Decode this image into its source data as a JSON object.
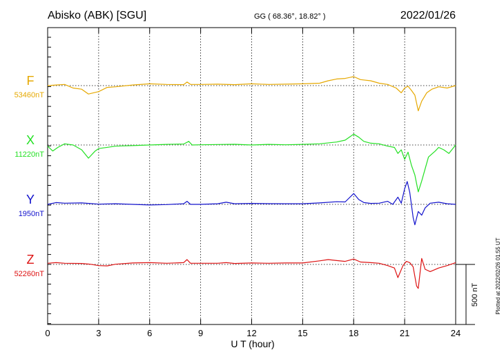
{
  "header": {
    "station": "Abisko (ABK)  [SGU]",
    "coords": "GG ( 68.36°,  18.82° )",
    "date": "2022/01/26"
  },
  "plotted_note": "Plotted at 2022/02/26 01:55 UT",
  "scale_bar_label": "500 nT",
  "colors": {
    "F": "#e6a800",
    "X": "#22e022",
    "Y": "#1010cc",
    "Z": "#dd1111"
  },
  "chart_data": {
    "type": "line",
    "title": "Abisko (ABK)  [SGU]",
    "xlabel": "U T (hour)",
    "ylabel": "",
    "xlim": [
      0,
      24
    ],
    "x_ticks": [
      "0",
      "3",
      "6",
      "9",
      "12",
      "15",
      "18",
      "21",
      "24"
    ],
    "grid": true,
    "scale_bar_nT": 500,
    "series": [
      {
        "key": "F",
        "name": "F",
        "baseline_label": "53460nT",
        "baseline": 53460,
        "color": "#e6a800",
        "points": [
          [
            0,
            53460
          ],
          [
            0.5,
            53465
          ],
          [
            1,
            53470
          ],
          [
            1.5,
            53440
          ],
          [
            2,
            53430
          ],
          [
            2.4,
            53390
          ],
          [
            3,
            53410
          ],
          [
            3.5,
            53445
          ],
          [
            4,
            53450
          ],
          [
            5,
            53465
          ],
          [
            6,
            53475
          ],
          [
            7,
            53470
          ],
          [
            8,
            53468
          ],
          [
            8.2,
            53490
          ],
          [
            8.4,
            53470
          ],
          [
            9,
            53470
          ],
          [
            10,
            53472
          ],
          [
            11,
            53468
          ],
          [
            12,
            53475
          ],
          [
            13,
            53470
          ],
          [
            14,
            53472
          ],
          [
            15,
            53475
          ],
          [
            16,
            53480
          ],
          [
            16.5,
            53500
          ],
          [
            17,
            53515
          ],
          [
            17.5,
            53520
          ],
          [
            18,
            53535
          ],
          [
            18.4,
            53510
          ],
          [
            19,
            53500
          ],
          [
            19.5,
            53480
          ],
          [
            20,
            53470
          ],
          [
            20.5,
            53440
          ],
          [
            20.8,
            53400
          ],
          [
            21,
            53440
          ],
          [
            21.2,
            53455
          ],
          [
            21.4,
            53420
          ],
          [
            21.6,
            53380
          ],
          [
            21.8,
            53250
          ],
          [
            22,
            53330
          ],
          [
            22.3,
            53400
          ],
          [
            22.6,
            53430
          ],
          [
            23,
            53450
          ],
          [
            23.5,
            53440
          ],
          [
            24,
            53460
          ]
        ]
      },
      {
        "key": "X",
        "name": "X",
        "baseline_label": "11220nT",
        "baseline": 11220,
        "color": "#22e022",
        "points": [
          [
            0,
            11210
          ],
          [
            0.3,
            11170
          ],
          [
            0.6,
            11200
          ],
          [
            1,
            11230
          ],
          [
            1.5,
            11220
          ],
          [
            2,
            11180
          ],
          [
            2.4,
            11110
          ],
          [
            2.8,
            11170
          ],
          [
            3,
            11190
          ],
          [
            4,
            11210
          ],
          [
            5,
            11215
          ],
          [
            6,
            11220
          ],
          [
            7,
            11225
          ],
          [
            8,
            11228
          ],
          [
            8.3,
            11250
          ],
          [
            8.5,
            11220
          ],
          [
            9,
            11222
          ],
          [
            10,
            11224
          ],
          [
            11,
            11226
          ],
          [
            12,
            11220
          ],
          [
            13,
            11225
          ],
          [
            14,
            11222
          ],
          [
            15,
            11225
          ],
          [
            16,
            11230
          ],
          [
            17,
            11245
          ],
          [
            17.5,
            11260
          ],
          [
            18,
            11310
          ],
          [
            18.3,
            11285
          ],
          [
            18.6,
            11250
          ],
          [
            19,
            11235
          ],
          [
            19.5,
            11230
          ],
          [
            20,
            11210
          ],
          [
            20.4,
            11200
          ],
          [
            20.6,
            11150
          ],
          [
            20.8,
            11180
          ],
          [
            21,
            11100
          ],
          [
            21.2,
            11160
          ],
          [
            21.4,
            11050
          ],
          [
            21.6,
            10970
          ],
          [
            21.8,
            10830
          ],
          [
            22,
            10920
          ],
          [
            22.2,
            11020
          ],
          [
            22.4,
            11120
          ],
          [
            22.8,
            11170
          ],
          [
            23,
            11200
          ],
          [
            23.3,
            11180
          ],
          [
            23.6,
            11150
          ],
          [
            24,
            11220
          ]
        ]
      },
      {
        "key": "Y",
        "name": "Y",
        "baseline_label": "1950nT",
        "baseline": 1950,
        "color": "#1010cc",
        "points": [
          [
            0,
            1950
          ],
          [
            0.5,
            1965
          ],
          [
            1,
            1960
          ],
          [
            2,
            1962
          ],
          [
            3,
            1952
          ],
          [
            4,
            1955
          ],
          [
            5,
            1950
          ],
          [
            6,
            1945
          ],
          [
            7,
            1948
          ],
          [
            8,
            1955
          ],
          [
            8.2,
            1975
          ],
          [
            8.4,
            1950
          ],
          [
            9,
            1950
          ],
          [
            10,
            1955
          ],
          [
            10.5,
            1968
          ],
          [
            11,
            1955
          ],
          [
            12,
            1958
          ],
          [
            13,
            1956
          ],
          [
            14,
            1955
          ],
          [
            15,
            1955
          ],
          [
            16,
            1962
          ],
          [
            17,
            1972
          ],
          [
            17.5,
            1970
          ],
          [
            18,
            2040
          ],
          [
            18.3,
            1990
          ],
          [
            18.6,
            1965
          ],
          [
            19,
            1958
          ],
          [
            19.5,
            1960
          ],
          [
            20,
            1975
          ],
          [
            20.3,
            1950
          ],
          [
            20.6,
            2010
          ],
          [
            20.8,
            1960
          ],
          [
            21,
            2080
          ],
          [
            21.15,
            2140
          ],
          [
            21.3,
            2050
          ],
          [
            21.5,
            1840
          ],
          [
            21.6,
            1780
          ],
          [
            21.8,
            1890
          ],
          [
            22,
            1860
          ],
          [
            22.2,
            1920
          ],
          [
            22.5,
            1960
          ],
          [
            23,
            1968
          ],
          [
            23.5,
            1955
          ],
          [
            24,
            1950
          ]
        ]
      },
      {
        "key": "Z",
        "name": "Z",
        "baseline_label": "52260nT",
        "baseline": 52260,
        "color": "#dd1111",
        "points": [
          [
            0,
            52270
          ],
          [
            0.5,
            52275
          ],
          [
            1,
            52270
          ],
          [
            2,
            52268
          ],
          [
            2.5,
            52262
          ],
          [
            3,
            52250
          ],
          [
            3.5,
            52248
          ],
          [
            4,
            52262
          ],
          [
            5,
            52272
          ],
          [
            6,
            52275
          ],
          [
            7,
            52270
          ],
          [
            8,
            52275
          ],
          [
            8.2,
            52300
          ],
          [
            8.4,
            52270
          ],
          [
            9,
            52270
          ],
          [
            10,
            52270
          ],
          [
            10.5,
            52275
          ],
          [
            11,
            52268
          ],
          [
            12,
            52272
          ],
          [
            13,
            52270
          ],
          [
            14,
            52272
          ],
          [
            15,
            52272
          ],
          [
            16,
            52290
          ],
          [
            16.5,
            52300
          ],
          [
            17,
            52292
          ],
          [
            17.5,
            52285
          ],
          [
            18,
            52305
          ],
          [
            18.4,
            52280
          ],
          [
            19,
            52275
          ],
          [
            19.5,
            52270
          ],
          [
            20,
            52250
          ],
          [
            20.4,
            52230
          ],
          [
            20.6,
            52150
          ],
          [
            20.9,
            52250
          ],
          [
            21.1,
            52285
          ],
          [
            21.3,
            52275
          ],
          [
            21.5,
            52240
          ],
          [
            21.7,
            52080
          ],
          [
            21.8,
            52060
          ],
          [
            22,
            52310
          ],
          [
            22.2,
            52220
          ],
          [
            22.5,
            52200
          ],
          [
            23,
            52230
          ],
          [
            23.5,
            52250
          ],
          [
            24,
            52275
          ]
        ]
      }
    ]
  }
}
